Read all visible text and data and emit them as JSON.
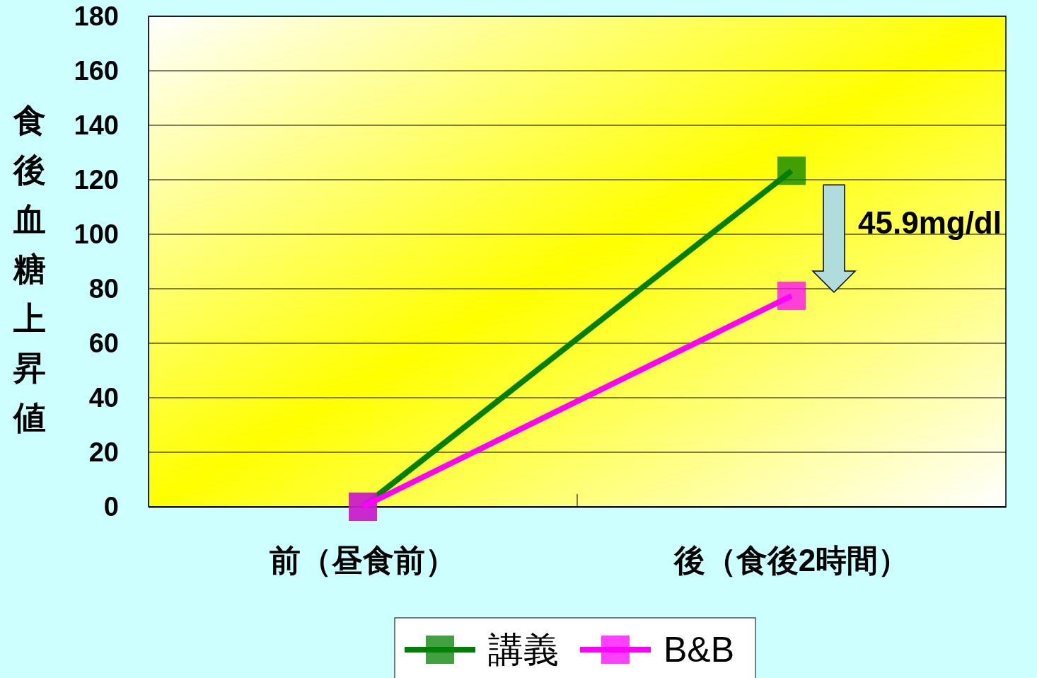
{
  "chart_data": {
    "type": "line",
    "ylabel": "食後血糖上昇値",
    "categories": [
      "前（昼食前）",
      "後（食後2時間）"
    ],
    "series": [
      {
        "name": "講義",
        "color": "#008000",
        "values": [
          0,
          123.3
        ]
      },
      {
        "name": "B&B",
        "color": "#ff00ff",
        "values": [
          0,
          77.4
        ]
      }
    ],
    "ylim": [
      0,
      180
    ],
    "yticks": [
      0,
      20,
      40,
      60,
      80,
      100,
      120,
      140,
      160,
      180
    ],
    "grid": "y",
    "legend": "bottom",
    "marker": "square",
    "line_style": "solid",
    "annotations": [
      "45.9mg/dl"
    ]
  }
}
